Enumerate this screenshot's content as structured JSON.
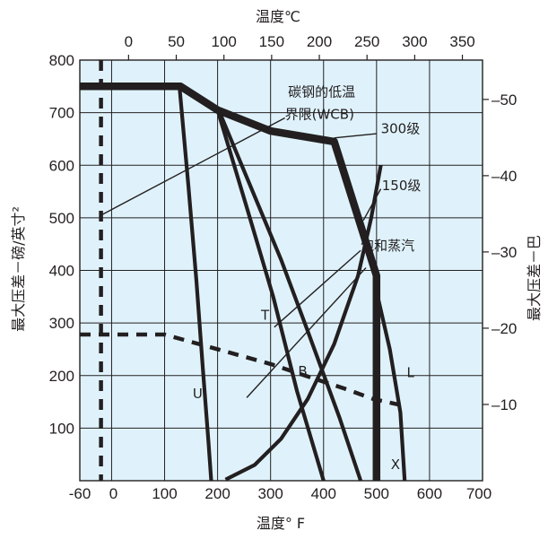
{
  "chart_data": {
    "type": "line",
    "title": "",
    "plot_background": "#dff2fb",
    "line_color": "#231f20",
    "grid": true,
    "x_bottom": {
      "label": "温度° F",
      "range": [
        -60,
        700
      ],
      "ticks": [
        {
          "value": -60,
          "label": "-60"
        },
        {
          "value": 0,
          "label": "0"
        },
        {
          "value": 100,
          "label": "100"
        },
        {
          "value": 200,
          "label": "200"
        },
        {
          "value": 300,
          "label": "300"
        },
        {
          "value": 400,
          "label": "400"
        },
        {
          "value": 500,
          "label": "500"
        },
        {
          "value": 600,
          "label": "600"
        },
        {
          "value": 700,
          "label": "700"
        }
      ]
    },
    "x_top": {
      "label": "温度℃",
      "ticks": [
        {
          "value": 0,
          "label": "0"
        },
        {
          "value": 50,
          "label": "50"
        },
        {
          "value": 100,
          "label": "100"
        },
        {
          "value": 150,
          "label": "150"
        },
        {
          "value": 200,
          "label": "200"
        },
        {
          "value": 250,
          "label": "250"
        },
        {
          "value": 300,
          "label": "300"
        },
        {
          "value": 350,
          "label": "350"
        }
      ]
    },
    "y_left": {
      "label": "最大压差－磅/英寸²",
      "range": [
        0,
        800
      ],
      "ticks": [
        {
          "value": 100,
          "label": "100"
        },
        {
          "value": 200,
          "label": "200"
        },
        {
          "value": 300,
          "label": "300"
        },
        {
          "value": 400,
          "label": "400"
        },
        {
          "value": 500,
          "label": "500"
        },
        {
          "value": 600,
          "label": "600"
        },
        {
          "value": 700,
          "label": "700"
        },
        {
          "value": 800,
          "label": "800"
        }
      ]
    },
    "y_right": {
      "label": "最大压差－巴",
      "ticks": [
        {
          "value": 10,
          "label": "10"
        },
        {
          "value": 20,
          "label": "20"
        },
        {
          "value": 30,
          "label": "30"
        },
        {
          "value": 40,
          "label": "40"
        },
        {
          "value": 50,
          "label": "50"
        }
      ]
    },
    "series": [
      {
        "name": "300级",
        "style": "heavy",
        "points": [
          [
            -60,
            750
          ],
          [
            130,
            750
          ],
          [
            200,
            705
          ],
          [
            300,
            665
          ],
          [
            420,
            645
          ],
          [
            500,
            390
          ],
          [
            500,
            0
          ]
        ]
      },
      {
        "name": "150级",
        "style": "dashed",
        "points": [
          [
            -60,
            278
          ],
          [
            100,
            278
          ],
          [
            200,
            250
          ],
          [
            300,
            222
          ],
          [
            380,
            195
          ],
          [
            440,
            175
          ],
          [
            495,
            155
          ],
          [
            550,
            143
          ]
        ]
      },
      {
        "name": "碳钢的低温界限(WCB)",
        "style": "dashed",
        "points": [
          [
            -20,
            800
          ],
          [
            -20,
            0
          ]
        ]
      },
      {
        "name": "饱和蒸汽",
        "style": "medium",
        "points": [
          [
            215,
            2
          ],
          [
            270,
            30
          ],
          [
            320,
            80
          ],
          [
            370,
            155
          ],
          [
            420,
            260
          ],
          [
            465,
            390
          ],
          [
            490,
            500
          ],
          [
            508,
            600
          ]
        ]
      },
      {
        "name": "U",
        "style": "medium",
        "points": [
          [
            128,
            750
          ],
          [
            145,
            560
          ],
          [
            160,
            380
          ],
          [
            172,
            215
          ],
          [
            183,
            70
          ],
          [
            188,
            0
          ]
        ]
      },
      {
        "name": "T",
        "style": "medium",
        "points": [
          [
            200,
            710
          ],
          [
            260,
            565
          ],
          [
            320,
            420
          ],
          [
            370,
            285
          ],
          [
            430,
            120
          ],
          [
            470,
            0
          ]
        ]
      },
      {
        "name": "seg-T2",
        "style": "medium",
        "points": [
          [
            200,
            705
          ],
          [
            255,
            520
          ],
          [
            305,
            350
          ],
          [
            350,
            170
          ],
          [
            400,
            0
          ]
        ]
      },
      {
        "name": "L",
        "style": "medium",
        "points": [
          [
            500,
            360
          ],
          [
            525,
            250
          ],
          [
            545,
            130
          ],
          [
            553,
            0
          ]
        ]
      }
    ],
    "annotations": [
      {
        "text": "碳钢的低温",
        "at": [
          333,
          731
        ]
      },
      {
        "text": "界限(WCB)",
        "at": [
          327,
          688
        ]
      },
      {
        "text": "300级",
        "at": [
          508,
          661
        ]
      },
      {
        "text": "150级",
        "at": [
          510,
          553
        ]
      },
      {
        "text": "饱和蒸汽",
        "at": [
          470,
          438
        ]
      },
      {
        "text": "T",
        "at": [
          282,
          306
        ]
      },
      {
        "text": "B",
        "at": [
          352,
          200
        ]
      },
      {
        "text": "U",
        "at": [
          153,
          157
        ]
      },
      {
        "text": "L",
        "at": [
          557,
          197
        ]
      },
      {
        "text": "X",
        "at": [
          527,
          22
        ]
      }
    ],
    "leaders": [
      {
        "from": [
          327,
          690
        ],
        "to": [
          -20,
          505
        ]
      },
      {
        "from": [
          500,
          660
        ],
        "to": [
          420,
          652
        ]
      },
      {
        "from": [
          508,
          555
        ],
        "to": [
          475,
          495
        ]
      },
      {
        "from": [
          470,
          438
        ],
        "to": [
          307,
          292
        ]
      },
      {
        "from": [
          480,
          405
        ],
        "to": [
          255,
          158
        ]
      }
    ]
  }
}
